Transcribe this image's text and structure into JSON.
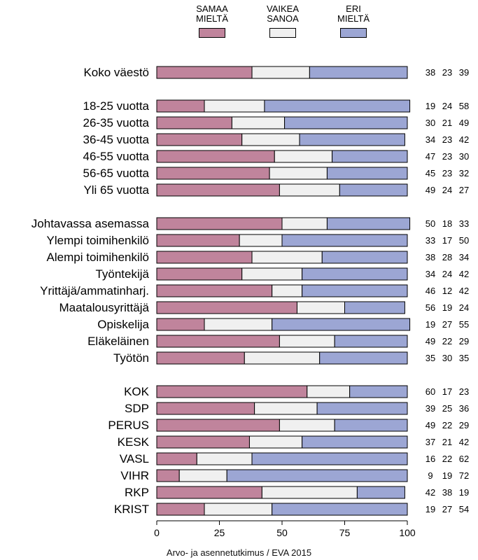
{
  "chart_data": {
    "type": "bar",
    "orientation": "horizontal",
    "stacked": true,
    "categories": [
      "Koko väestö",
      "18-25 vuotta",
      "26-35 vuotta",
      "36-45 vuotta",
      "46-55 vuotta",
      "56-65 vuotta",
      "Yli 65 vuotta",
      "Johtavassa asemassa",
      "Ylempi toimihenkilö",
      "Alempi toimihenkilö",
      "Työntekijä",
      "Yrittäjä/ammatinharj.",
      "Maatalousyrittäjä",
      "Opiskelija",
      "Eläkeläinen",
      "Työtön",
      "KOK",
      "SDP",
      "PERUS",
      "KESK",
      "VASL",
      "VIHR",
      "RKP",
      "KRIST"
    ],
    "groups": [
      [
        0
      ],
      [
        1,
        2,
        3,
        4,
        5,
        6
      ],
      [
        7,
        8,
        9,
        10,
        11,
        12,
        13,
        14,
        15
      ],
      [
        16,
        17,
        18,
        19,
        20,
        21,
        22,
        23
      ]
    ],
    "series": [
      {
        "name": "SAMAA MIELTÄ",
        "color": "#c0849c",
        "values": [
          38,
          19,
          30,
          34,
          47,
          45,
          49,
          50,
          33,
          38,
          34,
          46,
          56,
          19,
          49,
          35,
          60,
          39,
          49,
          37,
          16,
          9,
          42,
          19
        ]
      },
      {
        "name": "VAIKEA SANOA",
        "color": "#f0f0f0",
        "values": [
          23,
          24,
          21,
          23,
          23,
          23,
          24,
          18,
          17,
          28,
          24,
          12,
          19,
          27,
          22,
          30,
          17,
          25,
          22,
          21,
          22,
          19,
          38,
          27
        ]
      },
      {
        "name": "ERI MIELTÄ",
        "color": "#9ca6d4",
        "values": [
          39,
          58,
          49,
          42,
          30,
          32,
          27,
          33,
          50,
          34,
          42,
          42,
          24,
          55,
          29,
          35,
          23,
          36,
          29,
          42,
          62,
          72,
          19,
          54
        ]
      }
    ],
    "xlim": [
      0,
      100
    ],
    "xticks": [
      0,
      25,
      50,
      75,
      100
    ],
    "legend_position": "top",
    "grid": false
  },
  "legend": [
    {
      "line1": "SAMAA",
      "line2": "MIELTÄ",
      "color": "#c0849c"
    },
    {
      "line1": "VAIKEA",
      "line2": "SANOA",
      "color": "#f0f0f0"
    },
    {
      "line1": "ERI",
      "line2": "MIELTÄ",
      "color": "#9ca6d4"
    }
  ],
  "source": "Arvo- ja asennetutkimus / EVA 2015"
}
